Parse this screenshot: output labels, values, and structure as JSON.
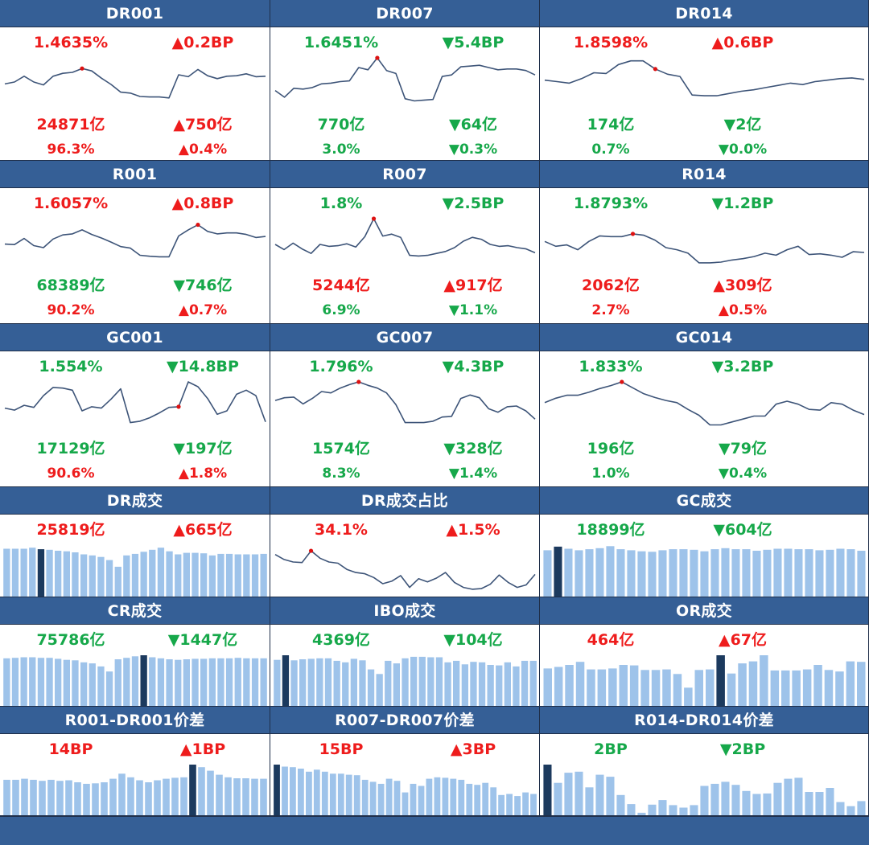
{
  "colors": {
    "header_bg": "#355f96",
    "up": "#ee1c1c",
    "down": "#16a84a",
    "line": "#3d5478",
    "bar": "#9ec3ea",
    "bar_highlight": "#1c3a5e",
    "dot": "#dd1111"
  },
  "chart_data": [
    {
      "id": "DR001",
      "type": "line",
      "title": "DR001",
      "rate": "1.4635%",
      "rate_dir": "up",
      "rate_change": "▲0.2BP",
      "rate_change_dir": "up",
      "volume": "24871亿",
      "volume_dir": "up",
      "volume_change": "▲750亿",
      "volume_change_dir": "up",
      "share": "96.3%",
      "share_dir": "up",
      "share_change": "▲0.4%",
      "share_change_dir": "up",
      "values": [
        54,
        50,
        38,
        50,
        56,
        38,
        32,
        30,
        22,
        27,
        42,
        55,
        71,
        73,
        80,
        81,
        81,
        83,
        35,
        39,
        24,
        37,
        43,
        38,
        37,
        33,
        39,
        38
      ],
      "peak_index": 8,
      "ylim": [
        0,
        100
      ]
    },
    {
      "id": "DR007",
      "type": "line",
      "title": "DR007",
      "rate": "1.6451%",
      "rate_dir": "down",
      "rate_change": "▼5.4BP",
      "rate_change_dir": "down",
      "volume": "770亿",
      "volume_dir": "down",
      "volume_change": "▼64亿",
      "volume_change_dir": "down",
      "share": "3.0%",
      "share_dir": "down",
      "share_change": "▼0.3%",
      "share_change_dir": "down",
      "values": [
        44,
        53,
        41,
        42,
        40,
        35,
        34,
        32,
        31,
        13,
        16,
        0,
        17,
        21,
        55,
        58,
        57,
        56,
        25,
        23,
        12,
        11,
        10,
        13,
        16,
        15,
        15,
        17,
        23
      ],
      "peak_index": 11,
      "ylim": [
        0,
        65
      ]
    },
    {
      "id": "DR014",
      "type": "line",
      "title": "DR014",
      "rate": "1.8598%",
      "rate_dir": "up",
      "rate_change": "▲0.6BP",
      "rate_change_dir": "up",
      "volume": "174亿",
      "volume_dir": "down",
      "volume_change": "▼2亿",
      "volume_change_dir": "down",
      "share": "0.7%",
      "share_dir": "down",
      "share_change": "▼0.0%",
      "share_change_dir": "down",
      "values": [
        30,
        32,
        34,
        28,
        20,
        21,
        9,
        4,
        4,
        15,
        22,
        25,
        50,
        51,
        51,
        48,
        45,
        43,
        40,
        37,
        34,
        36,
        32,
        30,
        28,
        27,
        29
      ],
      "peak_index": 9,
      "ylim": [
        0,
        65
      ]
    },
    {
      "id": "R001",
      "type": "line",
      "title": "R001",
      "rate": "1.6057%",
      "rate_dir": "up",
      "rate_change": "▲0.8BP",
      "rate_change_dir": "up",
      "volume": "68389亿",
      "volume_dir": "down",
      "volume_change": "▼746亿",
      "volume_change_dir": "down",
      "share": "90.2%",
      "share_dir": "up",
      "share_change": "▲0.7%",
      "share_change_dir": "up",
      "values": [
        50,
        51,
        39,
        53,
        57,
        40,
        32,
        30,
        22,
        31,
        38,
        46,
        55,
        58,
        72,
        74,
        75,
        75,
        34,
        22,
        12,
        25,
        30,
        28,
        28,
        31,
        37,
        35
      ],
      "peak_index": 20,
      "ylim": [
        0,
        95
      ]
    },
    {
      "id": "R007",
      "type": "line",
      "title": "R007",
      "rate": "1.8%",
      "rate_dir": "down",
      "rate_change": "▼2.5BP",
      "rate_change_dir": "down",
      "volume": "5244亿",
      "volume_dir": "up",
      "volume_change": "▲917亿",
      "volume_change_dir": "up",
      "share": "6.9%",
      "share_dir": "down",
      "share_change": "▼1.1%",
      "share_change_dir": "down",
      "values": [
        40,
        48,
        38,
        47,
        54,
        40,
        43,
        42,
        39,
        44,
        28,
        0,
        27,
        24,
        29,
        57,
        58,
        57,
        54,
        51,
        45,
        35,
        29,
        32,
        40,
        43,
        42,
        45,
        47,
        53
      ],
      "peak_index": 11,
      "ylim": [
        0,
        75
      ]
    },
    {
      "id": "R014",
      "type": "line",
      "title": "R014",
      "rate": "1.8793%",
      "rate_dir": "down",
      "rate_change": "▼1.2BP",
      "rate_change_dir": "down",
      "volume": "2062亿",
      "volume_dir": "up",
      "volume_change": "▲309亿",
      "volume_change_dir": "up",
      "share": "2.7%",
      "share_dir": "up",
      "share_change": "▲0.5%",
      "share_change_dir": "up",
      "values": [
        33,
        40,
        38,
        45,
        33,
        25,
        26,
        26,
        22,
        24,
        31,
        42,
        45,
        50,
        64,
        64,
        63,
        60,
        58,
        55,
        50,
        53,
        45,
        40,
        52,
        51,
        53,
        56,
        48,
        49
      ],
      "peak_index": 8,
      "ylim": [
        0,
        70
      ]
    },
    {
      "id": "GC001",
      "type": "line",
      "title": "GC001",
      "rate": "1.554%",
      "rate_dir": "down",
      "rate_change": "▼14.8BP",
      "rate_change_dir": "down",
      "volume": "17129亿",
      "volume_dir": "down",
      "volume_change": "▼197亿",
      "volume_change_dir": "down",
      "share": "90.6%",
      "share_dir": "up",
      "share_change": "▲1.8%",
      "share_change_dir": "up",
      "values": [
        38,
        41,
        34,
        37,
        20,
        8,
        9,
        12,
        42,
        36,
        38,
        25,
        10,
        59,
        57,
        52,
        45,
        37,
        36,
        0,
        7,
        24,
        47,
        42,
        18,
        12,
        20,
        58
      ],
      "peak_index": 18,
      "ylim": [
        0,
        70
      ]
    },
    {
      "id": "GC007",
      "type": "line",
      "title": "GC007",
      "rate": "1.796%",
      "rate_dir": "down",
      "rate_change": "▼4.3BP",
      "rate_change_dir": "down",
      "volume": "1574亿",
      "volume_dir": "down",
      "volume_change": "▼328亿",
      "volume_change_dir": "down",
      "share": "8.3%",
      "share_dir": "down",
      "share_change": "▼1.4%",
      "share_change_dir": "down",
      "values": [
        27,
        23,
        22,
        32,
        24,
        14,
        16,
        9,
        4,
        0,
        5,
        9,
        16,
        33,
        59,
        59,
        59,
        57,
        51,
        50,
        24,
        19,
        23,
        39,
        44,
        36,
        35,
        42,
        54
      ],
      "peak_index": 9,
      "ylim": [
        0,
        70
      ]
    },
    {
      "id": "GC014",
      "type": "line",
      "title": "GC014",
      "rate": "1.833%",
      "rate_dir": "down",
      "rate_change": "▼3.2BP",
      "rate_change_dir": "down",
      "volume": "196亿",
      "volume_dir": "down",
      "volume_change": "▼79亿",
      "volume_change_dir": "down",
      "share": "1.0%",
      "share_dir": "down",
      "share_change": "▼0.4%",
      "share_change_dir": "down",
      "values": [
        28,
        22,
        18,
        18,
        14,
        9,
        5,
        0,
        8,
        16,
        21,
        25,
        28,
        37,
        45,
        58,
        58,
        54,
        50,
        46,
        46,
        30,
        26,
        30,
        37,
        38,
        28,
        30,
        38,
        44
      ],
      "peak_index": 7,
      "ylim": [
        0,
        65
      ]
    },
    {
      "id": "DR成交",
      "type": "bar",
      "title": "DR成交",
      "value": "25819亿",
      "value_dir": "up",
      "change": "▲665亿",
      "change_dir": "up",
      "values": [
        93,
        93,
        93,
        95,
        92,
        91,
        89,
        88,
        86,
        82,
        80,
        77,
        71,
        58,
        80,
        83,
        87,
        91,
        95,
        88,
        82,
        85,
        85,
        84,
        80,
        83,
        83,
        82,
        82,
        82,
        83
      ],
      "highlight_index": 4,
      "ylim": [
        0,
        100
      ]
    },
    {
      "id": "DR成交占比",
      "type": "line",
      "title": "DR成交占比",
      "value": "34.1%",
      "value_dir": "up",
      "change": "▲1.5%",
      "change_dir": "up",
      "values": [
        25,
        33,
        37,
        38,
        19,
        31,
        37,
        39,
        49,
        54,
        56,
        62,
        72,
        68,
        59,
        78,
        64,
        69,
        63,
        54,
        70,
        78,
        81,
        80,
        73,
        58,
        70,
        78,
        74,
        57
      ],
      "peak_index": 4,
      "ylim": [
        15,
        85
      ]
    },
    {
      "id": "GC成交",
      "type": "bar",
      "title": "GC成交",
      "value": "18899亿",
      "value_dir": "down",
      "change": "▼604亿",
      "change_dir": "down",
      "values": [
        90,
        97,
        93,
        90,
        92,
        94,
        98,
        92,
        90,
        88,
        87,
        90,
        92,
        92,
        91,
        88,
        92,
        94,
        92,
        92,
        89,
        91,
        93,
        93,
        92,
        92,
        90,
        91,
        93,
        92,
        89
      ],
      "highlight_index": 1,
      "ylim": [
        0,
        100
      ]
    },
    {
      "id": "CR成交",
      "type": "bar",
      "title": "CR成交",
      "value": "75786亿",
      "value_dir": "down",
      "change": "▼1447亿",
      "change_dir": "down",
      "values": [
        94,
        95,
        96,
        96,
        95,
        95,
        93,
        91,
        90,
        86,
        84,
        78,
        68,
        92,
        95,
        98,
        100,
        96,
        94,
        92,
        91,
        92,
        93,
        93,
        94,
        94,
        94,
        95,
        94,
        94,
        94
      ],
      "highlight_index": 16,
      "ylim": [
        0,
        100
      ]
    },
    {
      "id": "IBO成交",
      "type": "bar",
      "title": "IBO成交",
      "value": "4369亿",
      "value_dir": "down",
      "change": "▼104亿",
      "change_dir": "down",
      "values": [
        91,
        100,
        90,
        92,
        93,
        94,
        94,
        89,
        86,
        93,
        90,
        72,
        63,
        89,
        84,
        94,
        97,
        97,
        96,
        96,
        86,
        89,
        82,
        87,
        86,
        81,
        80,
        86,
        78,
        89,
        89
      ],
      "highlight_index": 1,
      "ylim": [
        0,
        100
      ]
    },
    {
      "id": "OR成交",
      "type": "bar",
      "title": "OR成交",
      "value": "464亿",
      "value_dir": "up",
      "change": "▲67亿",
      "change_dir": "up",
      "values": [
        74,
        77,
        81,
        87,
        72,
        72,
        74,
        81,
        80,
        71,
        71,
        72,
        63,
        36,
        71,
        72,
        100,
        64,
        84,
        88,
        100,
        70,
        70,
        70,
        72,
        81,
        71,
        68,
        88,
        87
      ],
      "highlight_index": 16,
      "ylim": [
        0,
        100
      ]
    },
    {
      "id": "R001-DR001价差",
      "type": "bar",
      "title": "R001-DR001价差",
      "value": "14BP",
      "value_dir": "up",
      "change": "▲1BP",
      "change_dir": "up",
      "values": [
        70,
        70,
        72,
        70,
        68,
        70,
        68,
        69,
        65,
        62,
        63,
        65,
        72,
        82,
        75,
        69,
        65,
        69,
        72,
        74,
        75,
        100,
        95,
        88,
        80,
        75,
        73,
        73,
        72,
        72
      ],
      "highlight_index": 21,
      "ylim": [
        0,
        100
      ]
    },
    {
      "id": "R007-DR007价差",
      "type": "bar",
      "title": "R007-DR007价差",
      "value": "15BP",
      "value_dir": "up",
      "change": "▲3BP",
      "change_dir": "up",
      "values": [
        100,
        96,
        95,
        92,
        86,
        90,
        86,
        82,
        82,
        80,
        79,
        70,
        66,
        62,
        72,
        68,
        45,
        62,
        58,
        72,
        75,
        74,
        72,
        70,
        62,
        60,
        64,
        55,
        40,
        42,
        38,
        45,
        42
      ],
      "highlight_index": 0,
      "ylim": [
        0,
        100
      ]
    },
    {
      "id": "R014-DR014价差",
      "type": "bar",
      "title": "R014-DR014价差",
      "value": "2BP",
      "value_dir": "down",
      "change": "▼2BP",
      "change_dir": "down",
      "values": [
        100,
        64,
        84,
        86,
        55,
        80,
        76,
        40,
        22,
        5,
        21,
        30,
        20,
        15,
        20,
        58,
        62,
        66,
        60,
        48,
        42,
        43,
        64,
        72,
        74,
        46,
        46,
        54,
        26,
        18,
        28
      ],
      "highlight_index": 0,
      "ylim": [
        0,
        100
      ]
    }
  ]
}
